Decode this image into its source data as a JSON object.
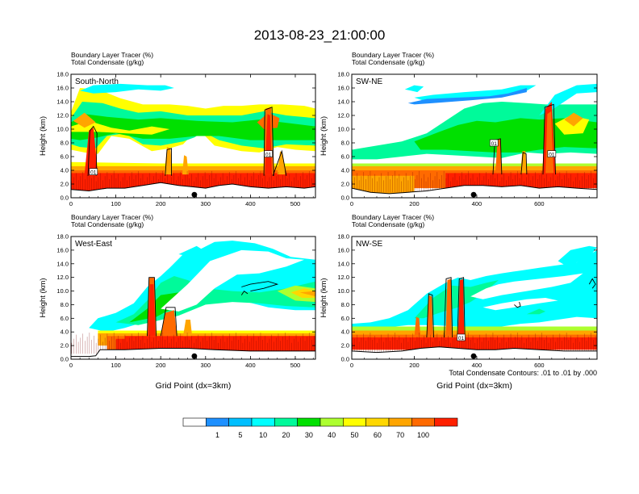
{
  "chart_data": {
    "type": "heatmap",
    "title": "2013-08-23_21:00:00",
    "subtitle_lines": [
      "Boundary Layer Tracer    (%)",
      "Total Condensate    (g/kg)"
    ],
    "colorbar": {
      "bounds": [
        "1",
        "5",
        "10",
        "20",
        "30",
        "40",
        "50",
        "60",
        "70",
        "100"
      ],
      "colors": [
        "#ffffff",
        "#1e90ff",
        "#00bfff",
        "#00ffff",
        "#00fa9a",
        "#00e000",
        "#adff2f",
        "#ffff00",
        "#ffd700",
        "#ffa500",
        "#ff6a00",
        "#ff2000"
      ]
    },
    "contour_note": "Total Condensate Contours: .01 to .01 by .000",
    "panels": [
      {
        "name": "South-North",
        "xlabel": "",
        "ylabel": "Height (km)",
        "xlim": [
          0,
          545
        ],
        "ylim": [
          0,
          18
        ],
        "xticks": [
          "0",
          "100",
          "200",
          "300",
          "400",
          "500"
        ],
        "yticks": [
          "0.0",
          "2.0",
          "4.0",
          "6.0",
          "8.0",
          "10.0",
          "12.0",
          "14.0",
          "16.0",
          "18.0"
        ],
        "contour_labels": [
          {
            "text": "01",
            "x": 50,
            "y": 3.8
          },
          {
            "text": "01",
            "x": 440,
            "y": 6.4
          }
        ],
        "marker_x": 275
      },
      {
        "name": "SW-NE",
        "xlabel": "",
        "ylabel": "Height (km)",
        "xlim": [
          0,
          785
        ],
        "ylim": [
          0,
          18
        ],
        "xticks": [
          "0",
          "200",
          "400",
          "600"
        ],
        "yticks": [
          "0.0",
          "2.0",
          "4.0",
          "6.0",
          "8.0",
          "10.0",
          "12.0",
          "14.0",
          "16.0",
          "18.0"
        ],
        "contour_labels": [
          {
            "text": "01",
            "x": 455,
            "y": 8.0
          },
          {
            "text": "01",
            "x": 640,
            "y": 6.4
          }
        ],
        "marker_x": 390
      },
      {
        "name": "West-East",
        "xlabel": "Grid Point (dx=3km)",
        "ylabel": "Height (km)",
        "xlim": [
          0,
          545
        ],
        "ylim": [
          0,
          18
        ],
        "xticks": [
          "0",
          "100",
          "200",
          "300",
          "400",
          "500"
        ],
        "yticks": [
          "0.0",
          "2.0",
          "4.0",
          "6.0",
          "8.0",
          "10.0",
          "12.0",
          "14.0",
          "16.0",
          "18.0"
        ],
        "contour_labels": [],
        "marker_x": 275
      },
      {
        "name": "NW-SE",
        "xlabel": "Grid Point (dx=3km)",
        "ylabel": "Height (km)",
        "xlim": [
          0,
          785
        ],
        "ylim": [
          0,
          18
        ],
        "xticks": [
          "0",
          "200",
          "400",
          "600"
        ],
        "yticks": [
          "0.0",
          "2.0",
          "4.0",
          "6.0",
          "8.0",
          "10.0",
          "12.0",
          "14.0",
          "16.0",
          "18.0"
        ],
        "contour_labels": [
          {
            "text": "01",
            "x": 350,
            "y": 3.2
          }
        ],
        "marker_x": 390
      }
    ]
  }
}
